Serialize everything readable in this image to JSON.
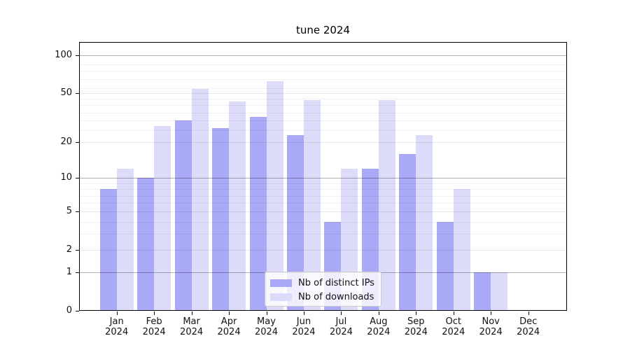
{
  "window": {
    "title": "tune 2024"
  },
  "chart_data": {
    "type": "bar",
    "title": "tune 2024",
    "categories": [
      "Jan",
      "Feb",
      "Mar",
      "Apr",
      "May",
      "Jun",
      "Jul",
      "Aug",
      "Sep",
      "Oct",
      "Nov",
      "Dec"
    ],
    "category_sublabel": "2024",
    "series": [
      {
        "name": "Nb of distinct IPs",
        "color": "#a9a9f7",
        "values": [
          8,
          10,
          30,
          26,
          32,
          23,
          4,
          12,
          16,
          4,
          1,
          0
        ]
      },
      {
        "name": "Nb of downloads",
        "color": "#dcdcfa",
        "values": [
          12,
          27,
          54,
          43,
          62,
          44,
          12,
          44,
          23,
          8,
          1,
          0
        ]
      }
    ],
    "y_axis": {
      "scale": "log1p",
      "major_ticks": [
        0,
        1,
        2,
        5,
        10,
        20,
        50,
        100
      ],
      "decade_ticks": [
        1,
        10,
        100
      ],
      "minor_ticks": [
        3,
        4,
        6,
        7,
        8,
        9,
        25,
        30,
        35,
        40,
        45,
        55,
        65,
        75,
        85
      ],
      "range": [
        0,
        127
      ]
    },
    "grid": true,
    "legend_position": "lower center"
  },
  "colors": {
    "background": "#ffffff",
    "axis": "#000000",
    "grid_decade": "rgba(0,0,0,0.30)",
    "grid_labeled": "rgba(0,0,0,0.085)",
    "grid_minor": "rgba(0,0,0,0.055)"
  }
}
